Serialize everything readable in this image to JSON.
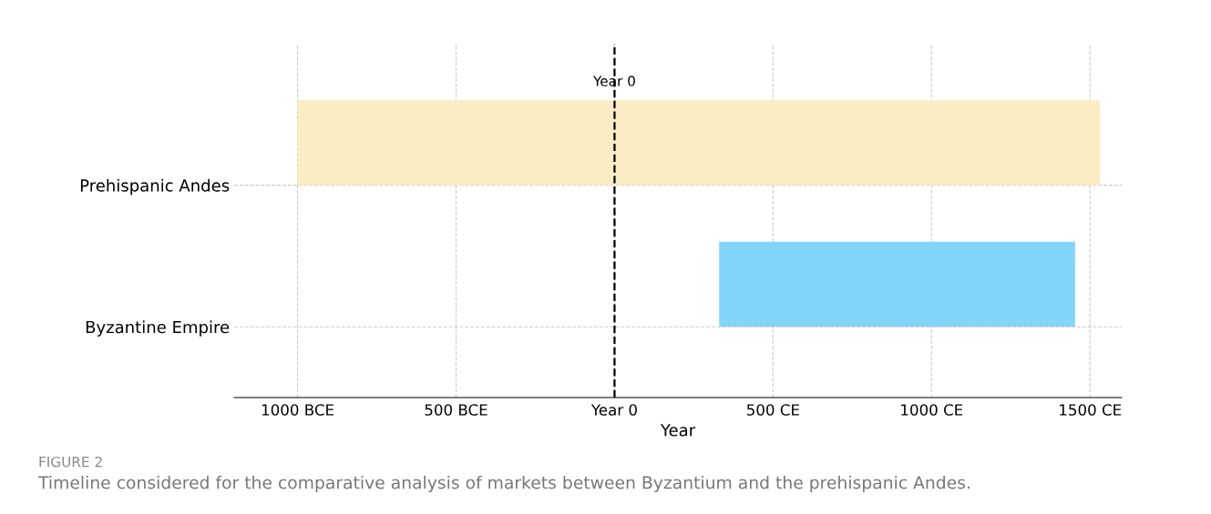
{
  "chart_data": {
    "type": "bar",
    "orientation": "horizontal",
    "categories": [
      "Prehispanic Andes",
      "Byzantine Empire"
    ],
    "base": [
      -1000,
      330
    ],
    "values": [
      2532,
      1123
    ],
    "colors": [
      "#fbecc4",
      "#82d4f8"
    ],
    "xlabel": "Year",
    "xlim": [
      -1200,
      1600
    ],
    "xticks": [
      {
        "value": -1000,
        "label": "1000 BCE"
      },
      {
        "value": -500,
        "label": "500 BCE"
      },
      {
        "value": 0,
        "label": "Year 0"
      },
      {
        "value": 500,
        "label": "500 CE"
      },
      {
        "value": 1000,
        "label": "1000 CE"
      },
      {
        "value": 1500,
        "label": "1500 CE"
      }
    ],
    "ref_lines": [
      {
        "axis": "x",
        "value": 0,
        "label": "Year 0",
        "color": "#000000",
        "line_style": "dashed"
      }
    ],
    "grid": true,
    "annotations": [
      "FIGURE 2",
      "Timeline considered for the comparative analysis of markets between Byzantium and the prehispanic Andes."
    ]
  }
}
